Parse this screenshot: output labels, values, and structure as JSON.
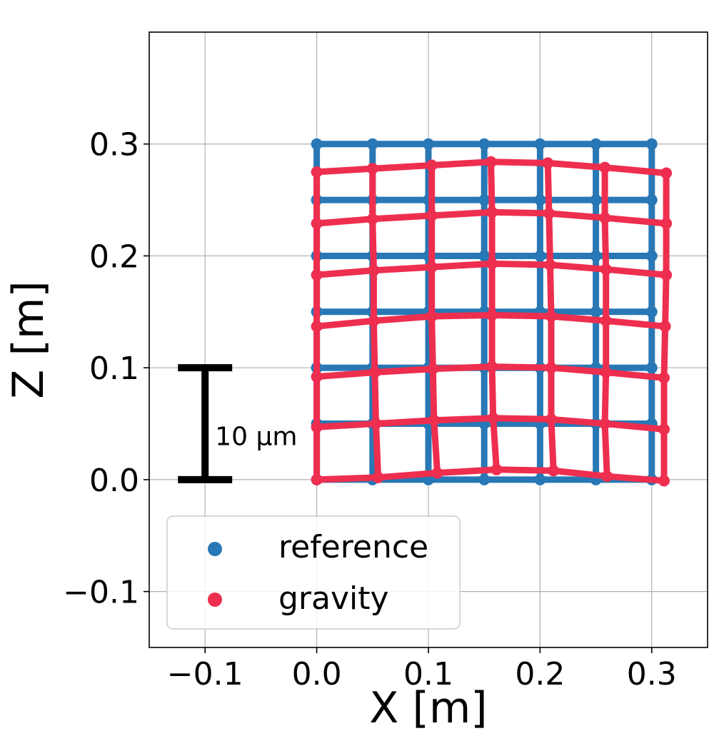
{
  "chart_data": {
    "type": "scatter",
    "title": "",
    "xlabel": "X [m]",
    "ylabel": "Z [m]",
    "xlim": [
      -0.15,
      0.35
    ],
    "ylim": [
      -0.15,
      0.4
    ],
    "xticks": [
      -0.1,
      0.0,
      0.1,
      0.2,
      0.3
    ],
    "yticks": [
      -0.1,
      0.0,
      0.1,
      0.2,
      0.3
    ],
    "xtick_labels": [
      "−0.1",
      "0.0",
      "0.1",
      "0.2",
      "0.3"
    ],
    "ytick_labels": [
      "−0.1",
      "0.0",
      "0.1",
      "0.2",
      "0.3"
    ],
    "grid": true,
    "legend_position": "lower-left",
    "series": [
      {
        "name": "reference",
        "color": "#2878b5",
        "x": [
          0.0,
          0.05,
          0.1,
          0.15,
          0.2,
          0.25,
          0.3
        ],
        "z": [
          0.0,
          0.05,
          0.1,
          0.15,
          0.2,
          0.25,
          0.3
        ],
        "grid_points": [
          [
            [
              0.0,
              0.0
            ],
            [
              0.05,
              0.0
            ],
            [
              0.1,
              0.0
            ],
            [
              0.15,
              0.0
            ],
            [
              0.2,
              0.0
            ],
            [
              0.25,
              0.0
            ],
            [
              0.3,
              0.0
            ]
          ],
          [
            [
              0.0,
              0.05
            ],
            [
              0.05,
              0.05
            ],
            [
              0.1,
              0.05
            ],
            [
              0.15,
              0.05
            ],
            [
              0.2,
              0.05
            ],
            [
              0.25,
              0.05
            ],
            [
              0.3,
              0.05
            ]
          ],
          [
            [
              0.0,
              0.1
            ],
            [
              0.05,
              0.1
            ],
            [
              0.1,
              0.1
            ],
            [
              0.15,
              0.1
            ],
            [
              0.2,
              0.1
            ],
            [
              0.25,
              0.1
            ],
            [
              0.3,
              0.1
            ]
          ],
          [
            [
              0.0,
              0.15
            ],
            [
              0.05,
              0.15
            ],
            [
              0.1,
              0.15
            ],
            [
              0.15,
              0.15
            ],
            [
              0.2,
              0.15
            ],
            [
              0.25,
              0.15
            ],
            [
              0.3,
              0.15
            ]
          ],
          [
            [
              0.0,
              0.2
            ],
            [
              0.05,
              0.2
            ],
            [
              0.1,
              0.2
            ],
            [
              0.15,
              0.2
            ],
            [
              0.2,
              0.2
            ],
            [
              0.25,
              0.2
            ],
            [
              0.3,
              0.2
            ]
          ],
          [
            [
              0.0,
              0.25
            ],
            [
              0.05,
              0.25
            ],
            [
              0.1,
              0.25
            ],
            [
              0.15,
              0.25
            ],
            [
              0.2,
              0.25
            ],
            [
              0.25,
              0.25
            ],
            [
              0.3,
              0.25
            ]
          ],
          [
            [
              0.0,
              0.3
            ],
            [
              0.05,
              0.3
            ],
            [
              0.1,
              0.3
            ],
            [
              0.15,
              0.3
            ],
            [
              0.2,
              0.3
            ],
            [
              0.25,
              0.3
            ],
            [
              0.3,
              0.3
            ]
          ]
        ]
      },
      {
        "name": "gravity",
        "color": "#ee2e4f",
        "grid_points": [
          [
            [
              0.0,
              0.0
            ],
            [
              0.055,
              0.002
            ],
            [
              0.108,
              0.006
            ],
            [
              0.161,
              0.009
            ],
            [
              0.212,
              0.008
            ],
            [
              0.26,
              0.003
            ],
            [
              0.311,
              -0.001
            ]
          ],
          [
            [
              0.0,
              0.047
            ],
            [
              0.053,
              0.05
            ],
            [
              0.105,
              0.053
            ],
            [
              0.158,
              0.055
            ],
            [
              0.21,
              0.054
            ],
            [
              0.258,
              0.05
            ],
            [
              0.311,
              0.045
            ]
          ],
          [
            [
              0.0,
              0.092
            ],
            [
              0.052,
              0.096
            ],
            [
              0.104,
              0.099
            ],
            [
              0.157,
              0.101
            ],
            [
              0.21,
              0.1
            ],
            [
              0.259,
              0.096
            ],
            [
              0.311,
              0.091
            ]
          ],
          [
            [
              0.0,
              0.137
            ],
            [
              0.051,
              0.142
            ],
            [
              0.103,
              0.146
            ],
            [
              0.157,
              0.147
            ],
            [
              0.21,
              0.146
            ],
            [
              0.259,
              0.142
            ],
            [
              0.312,
              0.137
            ]
          ],
          [
            [
              0.0,
              0.183
            ],
            [
              0.051,
              0.187
            ],
            [
              0.103,
              0.19
            ],
            [
              0.157,
              0.193
            ],
            [
              0.209,
              0.192
            ],
            [
              0.259,
              0.188
            ],
            [
              0.313,
              0.183
            ]
          ],
          [
            [
              0.0,
              0.229
            ],
            [
              0.05,
              0.233
            ],
            [
              0.103,
              0.236
            ],
            [
              0.157,
              0.239
            ],
            [
              0.208,
              0.238
            ],
            [
              0.258,
              0.234
            ],
            [
              0.313,
              0.229
            ]
          ],
          [
            [
              0.0,
              0.275
            ],
            [
              0.05,
              0.278
            ],
            [
              0.103,
              0.281
            ],
            [
              0.156,
              0.284
            ],
            [
              0.207,
              0.283
            ],
            [
              0.258,
              0.279
            ],
            [
              0.313,
              0.274
            ]
          ]
        ]
      }
    ],
    "scalebar": {
      "label": "10 μm",
      "z_bottom": 0.0,
      "z_top": 0.1,
      "x_center": -0.1
    }
  }
}
